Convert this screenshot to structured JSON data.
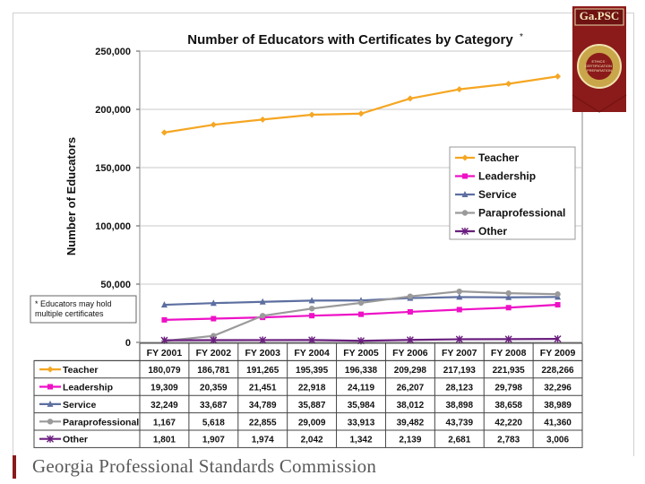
{
  "footer": {
    "organization": "Georgia Professional Standards Commission"
  },
  "logo": {
    "text": "Ga.PSC",
    "seal_text": "ETHICS · CERTIFICATION · PREPARATION"
  },
  "colors": {
    "Teacher": "#f5a623",
    "Leadership": "#ee11c6",
    "Service": "#5d6fa0",
    "Paraprofessional": "#9a9a9a",
    "Other": "#6a1e7e",
    "brand": "#8b1a1a"
  },
  "footnote": "* Educators may hold multiple certificates",
  "chart_data": {
    "type": "line",
    "title": "Number of Educators with Certificates by Category",
    "title_mark": "*",
    "ylabel": "Number of Educators",
    "xlabel": "",
    "ylim": [
      0,
      250000
    ],
    "yticks": [
      "0",
      "50,000",
      "100,000",
      "150,000",
      "200,000",
      "250,000"
    ],
    "grid": true,
    "legend_position": "right",
    "categories": [
      "FY 2001",
      "FY 2002",
      "FY 2003",
      "FY 2004",
      "FY 2005",
      "FY 2006",
      "FY 2007",
      "FY 2008",
      "FY 2009"
    ],
    "series": [
      {
        "name": "Teacher",
        "values": [
          180079,
          186781,
          191265,
          195395,
          196338,
          209298,
          217193,
          221935,
          228266
        ],
        "labels": [
          "180,079",
          "186,781",
          "191,265",
          "195,395",
          "196,338",
          "209,298",
          "217,193",
          "221,935",
          "228,266"
        ]
      },
      {
        "name": "Leadership",
        "values": [
          19309,
          20359,
          21451,
          22918,
          24119,
          26207,
          28123,
          29798,
          32296
        ],
        "labels": [
          "19,309",
          "20,359",
          "21,451",
          "22,918",
          "24,119",
          "26,207",
          "28,123",
          "29,798",
          "32,296"
        ]
      },
      {
        "name": "Service",
        "values": [
          32249,
          33687,
          34789,
          35887,
          35984,
          38012,
          38898,
          38658,
          38989
        ],
        "labels": [
          "32,249",
          "33,687",
          "34,789",
          "35,887",
          "35,984",
          "38,012",
          "38,898",
          "38,658",
          "38,989"
        ]
      },
      {
        "name": "Paraprofessional",
        "values": [
          1167,
          5618,
          22855,
          29009,
          33913,
          39482,
          43739,
          42220,
          41360
        ],
        "labels": [
          "1,167",
          "5,618",
          "22,855",
          "29,009",
          "33,913",
          "39,482",
          "43,739",
          "42,220",
          "41,360"
        ]
      },
      {
        "name": "Other",
        "values": [
          1801,
          1907,
          1974,
          2042,
          1342,
          2139,
          2681,
          2783,
          3006
        ],
        "labels": [
          "1,801",
          "1,907",
          "1,974",
          "2,042",
          "1,342",
          "2,139",
          "2,681",
          "2,783",
          "3,006"
        ]
      }
    ]
  }
}
